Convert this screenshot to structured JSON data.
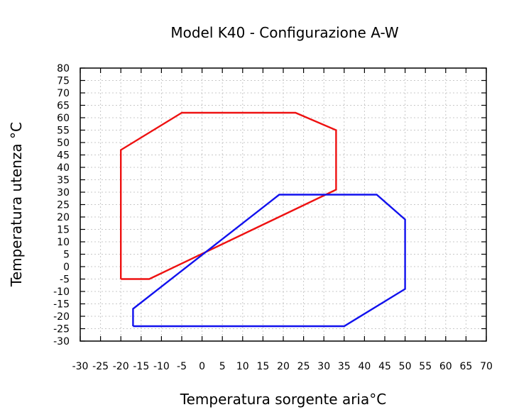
{
  "chart_data": {
    "type": "line",
    "title": "Model K40 - Configurazione A-W",
    "xlabel": "Temperatura sorgente aria°C",
    "ylabel": "Temperatura utenza °C",
    "xlim": [
      -30,
      70
    ],
    "ylim": [
      -30,
      80
    ],
    "xticks": [
      -30,
      -25,
      -20,
      -15,
      -10,
      -5,
      0,
      5,
      10,
      15,
      20,
      25,
      30,
      35,
      40,
      45,
      50,
      55,
      60,
      65,
      70
    ],
    "yticks": [
      -30,
      -25,
      -20,
      -15,
      -10,
      -5,
      0,
      5,
      10,
      15,
      20,
      25,
      30,
      35,
      40,
      45,
      50,
      55,
      60,
      65,
      70,
      75,
      80
    ],
    "grid": true,
    "series": [
      {
        "color": "#ee1111",
        "x": [
          -20,
          -13,
          33,
          33,
          23,
          -5,
          -20,
          -20
        ],
        "y": [
          -5,
          -5,
          31,
          55,
          62,
          62,
          47,
          -5
        ]
      },
      {
        "color": "#1111ee",
        "x": [
          -17,
          35,
          50,
          50,
          43,
          19,
          -17,
          -17
        ],
        "y": [
          -24,
          -24,
          -9,
          19,
          29,
          29,
          -17,
          -24
        ]
      }
    ]
  }
}
